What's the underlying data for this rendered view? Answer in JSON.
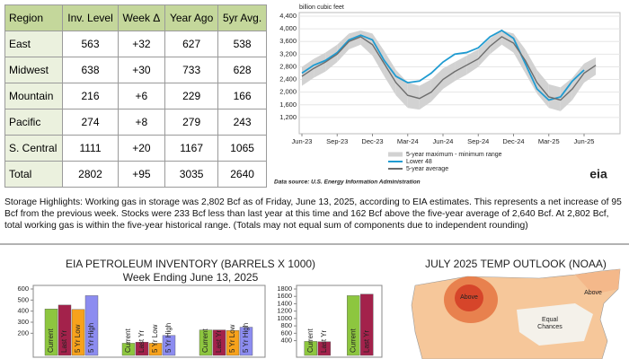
{
  "table": {
    "header": [
      "Region",
      "Inv. Level",
      "Week Δ",
      "Year Ago",
      "5yr Avg."
    ],
    "rows": [
      [
        "East",
        "563",
        "+32",
        "627",
        "538"
      ],
      [
        "Midwest",
        "638",
        "+30",
        "733",
        "628"
      ],
      [
        "Mountain",
        "216",
        "+6",
        "229",
        "166"
      ],
      [
        "Pacific",
        "274",
        "+8",
        "279",
        "243"
      ],
      [
        "S. Central",
        "1111",
        "+20",
        "1167",
        "1065"
      ],
      [
        "Total",
        "2802",
        "+95",
        "3035",
        "2640"
      ]
    ]
  },
  "chart_data": [
    {
      "type": "line",
      "ylabel": "billion cubic feet",
      "x": [
        "Jun-23",
        "Jul-23",
        "Aug-23",
        "Sep-23",
        "Oct-23",
        "Nov-23",
        "Dec-23",
        "Jan-24",
        "Feb-24",
        "Mar-24",
        "Apr-24",
        "May-24",
        "Jun-24",
        "Jul-24",
        "Aug-24",
        "Sep-24",
        "Oct-24",
        "Nov-24",
        "Dec-24",
        "Jan-25",
        "Feb-25",
        "Mar-25",
        "Apr-25",
        "May-25",
        "Jun-25",
        "Jul-25"
      ],
      "xticks": [
        "Jun-23",
        "Sep-23",
        "Dec-23",
        "Mar-24",
        "Jun-24",
        "Sep-24",
        "Dec-24",
        "Mar-25",
        "Jun-25"
      ],
      "ylim": [
        800,
        4400
      ],
      "yticks": [
        {
          "value": 1200,
          "label": "1,200"
        },
        {
          "value": 1600,
          "label": "1,600"
        },
        {
          "value": 2000,
          "label": "2,000"
        },
        {
          "value": 2400,
          "label": "2,400"
        },
        {
          "value": 2800,
          "label": "2,800"
        },
        {
          "value": 3200,
          "label": "3,200"
        },
        {
          "value": 3600,
          "label": "3,600"
        },
        {
          "value": 4000,
          "label": "4,000"
        },
        {
          "value": 4400,
          "label": "4,400"
        }
      ],
      "series": [
        {
          "name": "5-year maximum - minimum range",
          "color": "#d2d2d2",
          "high": [
            2800,
            3050,
            3250,
            3500,
            3850,
            3950,
            3850,
            3300,
            2700,
            2300,
            2200,
            2400,
            2750,
            2950,
            3150,
            3350,
            3700,
            3950,
            3850,
            3350,
            2700,
            2250,
            2150,
            2450,
            2900,
            3100
          ],
          "low": [
            2200,
            2450,
            2650,
            2950,
            3350,
            3500,
            3150,
            2500,
            1900,
            1500,
            1450,
            1700,
            2100,
            2350,
            2550,
            2800,
            3200,
            3500,
            3250,
            2600,
            1950,
            1500,
            1400,
            1750,
            2300,
            2550
          ]
        },
        {
          "name": "Lower 48",
          "color": "#1f9bd1",
          "values": [
            2600,
            2850,
            3000,
            3250,
            3650,
            3800,
            3650,
            3000,
            2500,
            2300,
            2350,
            2600,
            2950,
            3200,
            3250,
            3400,
            3750,
            3950,
            3700,
            2900,
            2100,
            1750,
            1850,
            2350,
            2700,
            null
          ]
        },
        {
          "name": "5-year average",
          "color": "#6d6d6d",
          "values": [
            2500,
            2750,
            2950,
            3200,
            3600,
            3750,
            3500,
            2900,
            2300,
            1900,
            1800,
            2000,
            2400,
            2650,
            2850,
            3050,
            3450,
            3750,
            3550,
            3000,
            2300,
            1850,
            1750,
            2100,
            2600,
            2850
          ]
        }
      ],
      "source": "Data source: U.S. Energy Information Administration",
      "logo": "eia"
    },
    {
      "type": "bar",
      "title": "EIA PETROLEUM INVENTORY (BARRELS X 1000)",
      "subtitle": "Week Ending June 13, 2025",
      "categories": [
        null,
        null,
        null
      ],
      "ylim": [
        0,
        600
      ],
      "yticks": [
        200,
        300,
        400,
        500,
        600
      ],
      "series": [
        {
          "name": "Current",
          "color": "#8dc63f",
          "values": [
            420,
            110,
            230
          ]
        },
        {
          "name": "Last Yr",
          "color": "#a3224b",
          "values": [
            455,
            120,
            230
          ]
        },
        {
          "name": "5 Yr Low",
          "color": "#f7a21b",
          "values": [
            415,
            110,
            225
          ]
        },
        {
          "name": "5 Yr High",
          "color": "#8c8cf0",
          "values": [
            540,
            180,
            255
          ]
        }
      ]
    },
    {
      "type": "bar",
      "categories": [
        null,
        null
      ],
      "ylim": [
        0,
        1800
      ],
      "yticks": [
        400,
        600,
        800,
        1000,
        1200,
        1400,
        1600,
        1800
      ],
      "series": [
        {
          "name": "Current",
          "color": "#8dc63f",
          "values": [
            380,
            1620
          ]
        },
        {
          "name": "Last Yr",
          "color": "#a3224b",
          "values": [
            370,
            1660
          ]
        }
      ]
    }
  ],
  "highlights": "Storage Highlights: Working gas in storage was 2,802 Bcf as of Friday, June 13, 2025, according to EIA estimates. This represents a net increase of 95 Bcf from the previous week. Stocks were 233 Bcf less than last year at this time and 162 Bcf above the five-year average of 2,640 Bcf. At 2,802 Bcf, total working gas is within the five-year historical range. (Totals may not equal sum of components due to independent rounding)",
  "map": {
    "title": "JULY 2025 TEMP OUTLOOK (NOAA)",
    "labels": [
      "Above",
      "Above",
      "Equal",
      "Chances"
    ]
  }
}
